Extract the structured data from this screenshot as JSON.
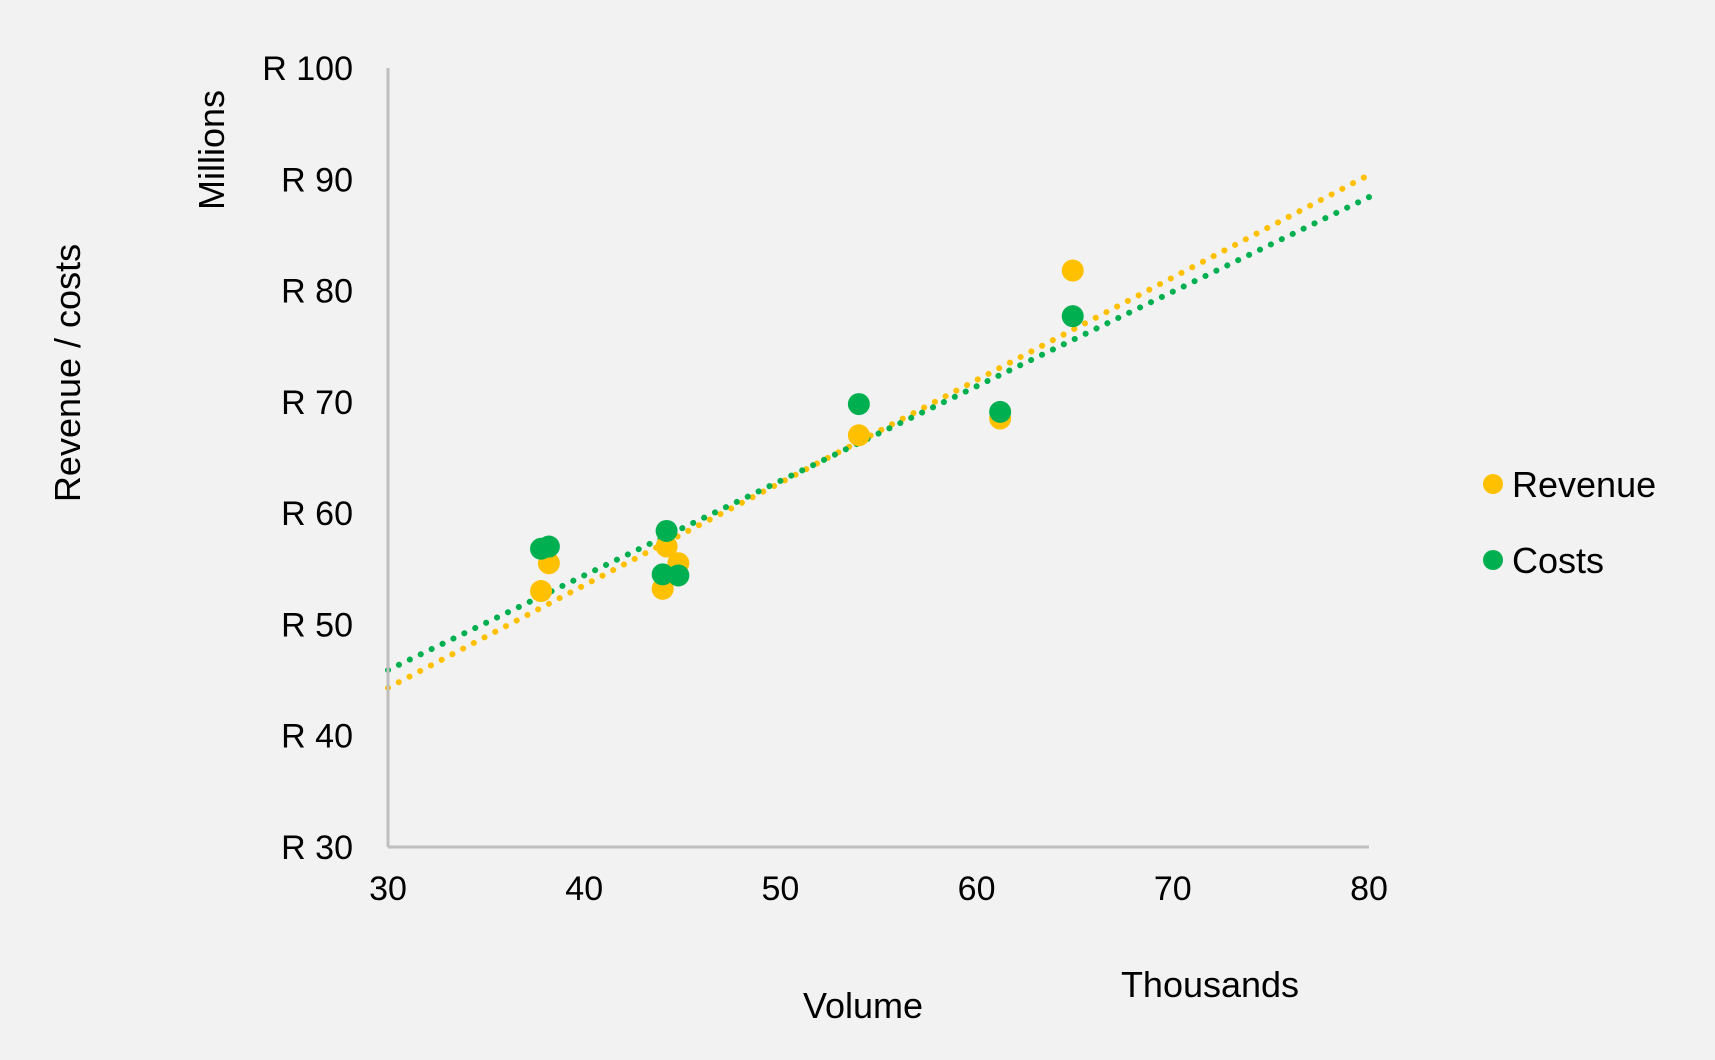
{
  "chart_data": {
    "type": "scatter",
    "title": "",
    "xlabel": "Volume",
    "ylabel": "Revenue / costs",
    "x_unit_label": "Thousands",
    "y_unit_label": "Millions",
    "xlim": [
      30,
      80
    ],
    "ylim": [
      30,
      100
    ],
    "x_ticks": [
      {
        "value": 30,
        "label": "30"
      },
      {
        "value": 40,
        "label": "40"
      },
      {
        "value": 50,
        "label": "50"
      },
      {
        "value": 60,
        "label": "60"
      },
      {
        "value": 70,
        "label": "70"
      },
      {
        "value": 80,
        "label": "80"
      }
    ],
    "y_ticks": [
      {
        "value": 30,
        "label": "R 30"
      },
      {
        "value": 40,
        "label": "R 40"
      },
      {
        "value": 50,
        "label": "R 50"
      },
      {
        "value": 60,
        "label": "R 60"
      },
      {
        "value": 70,
        "label": "R 70"
      },
      {
        "value": 80,
        "label": "R 80"
      },
      {
        "value": 90,
        "label": "R 90"
      },
      {
        "value": 100,
        "label": "R 100"
      }
    ],
    "grid": false,
    "legend_position": "right",
    "series": [
      {
        "name": "Revenue",
        "color": "#FFC000",
        "points": [
          {
            "x": 37.8,
            "y": 53.0
          },
          {
            "x": 38.2,
            "y": 55.5
          },
          {
            "x": 44.0,
            "y": 53.2
          },
          {
            "x": 44.2,
            "y": 57.0
          },
          {
            "x": 44.8,
            "y": 55.5
          },
          {
            "x": 54.0,
            "y": 67.0
          },
          {
            "x": 61.2,
            "y": 68.5
          },
          {
            "x": 64.9,
            "y": 81.8
          }
        ],
        "trendline": {
          "style": "dotted",
          "x": [
            30,
            80
          ],
          "y": [
            44.3,
            90.4
          ]
        }
      },
      {
        "name": "Costs",
        "color": "#00B050",
        "points": [
          {
            "x": 37.8,
            "y": 56.8
          },
          {
            "x": 38.2,
            "y": 57.0
          },
          {
            "x": 44.0,
            "y": 54.5
          },
          {
            "x": 44.2,
            "y": 58.4
          },
          {
            "x": 44.8,
            "y": 54.4
          },
          {
            "x": 54.0,
            "y": 69.8
          },
          {
            "x": 61.2,
            "y": 69.1
          },
          {
            "x": 64.9,
            "y": 77.7
          }
        ],
        "trendline": {
          "style": "dotted",
          "x": [
            30,
            80
          ],
          "y": [
            45.9,
            88.4
          ]
        }
      }
    ]
  }
}
